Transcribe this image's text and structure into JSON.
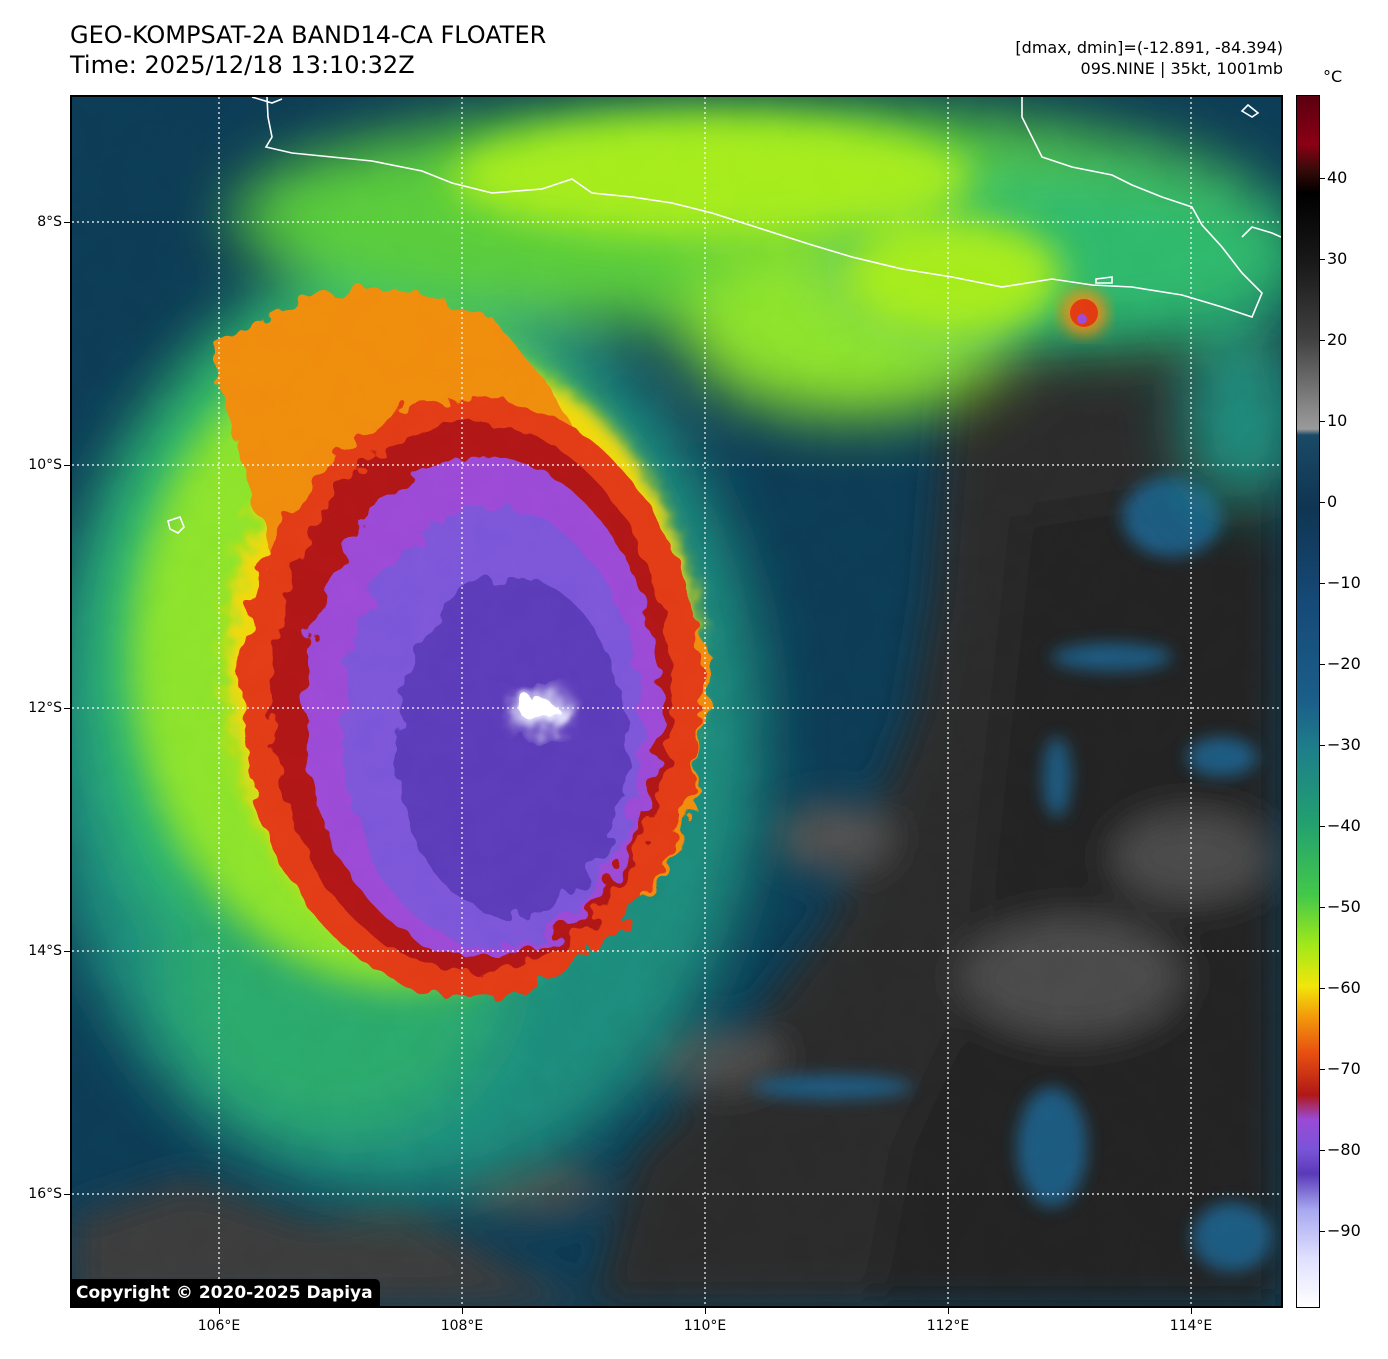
{
  "header": {
    "title_line1": "GEO-KOMPSAT-2A BAND14-CA FLOATER",
    "title_line2": "Time: 2025/12/18 13:10:32Z",
    "stats": "[dmax, dmin]=(-12.891, -84.394)",
    "storm": "09S.NINE | 35kt, 1001mb"
  },
  "map": {
    "lat_labels": [
      "8°S",
      "10°S",
      "12°S",
      "14°S",
      "16°S"
    ],
    "lon_labels": [
      "106°E",
      "108°E",
      "110°E",
      "112°E",
      "114°E"
    ],
    "gridlines": "dotted white",
    "coastline_color": "#ffffff"
  },
  "colorbar": {
    "unit": "°C",
    "labels": [
      "40",
      "30",
      "20",
      "10",
      "0",
      "−10",
      "−20",
      "−30",
      "−40",
      "−50",
      "−60",
      "−70",
      "−80",
      "−90"
    ]
  },
  "copyright": "Copyright © 2020-2025 Dapiya"
}
